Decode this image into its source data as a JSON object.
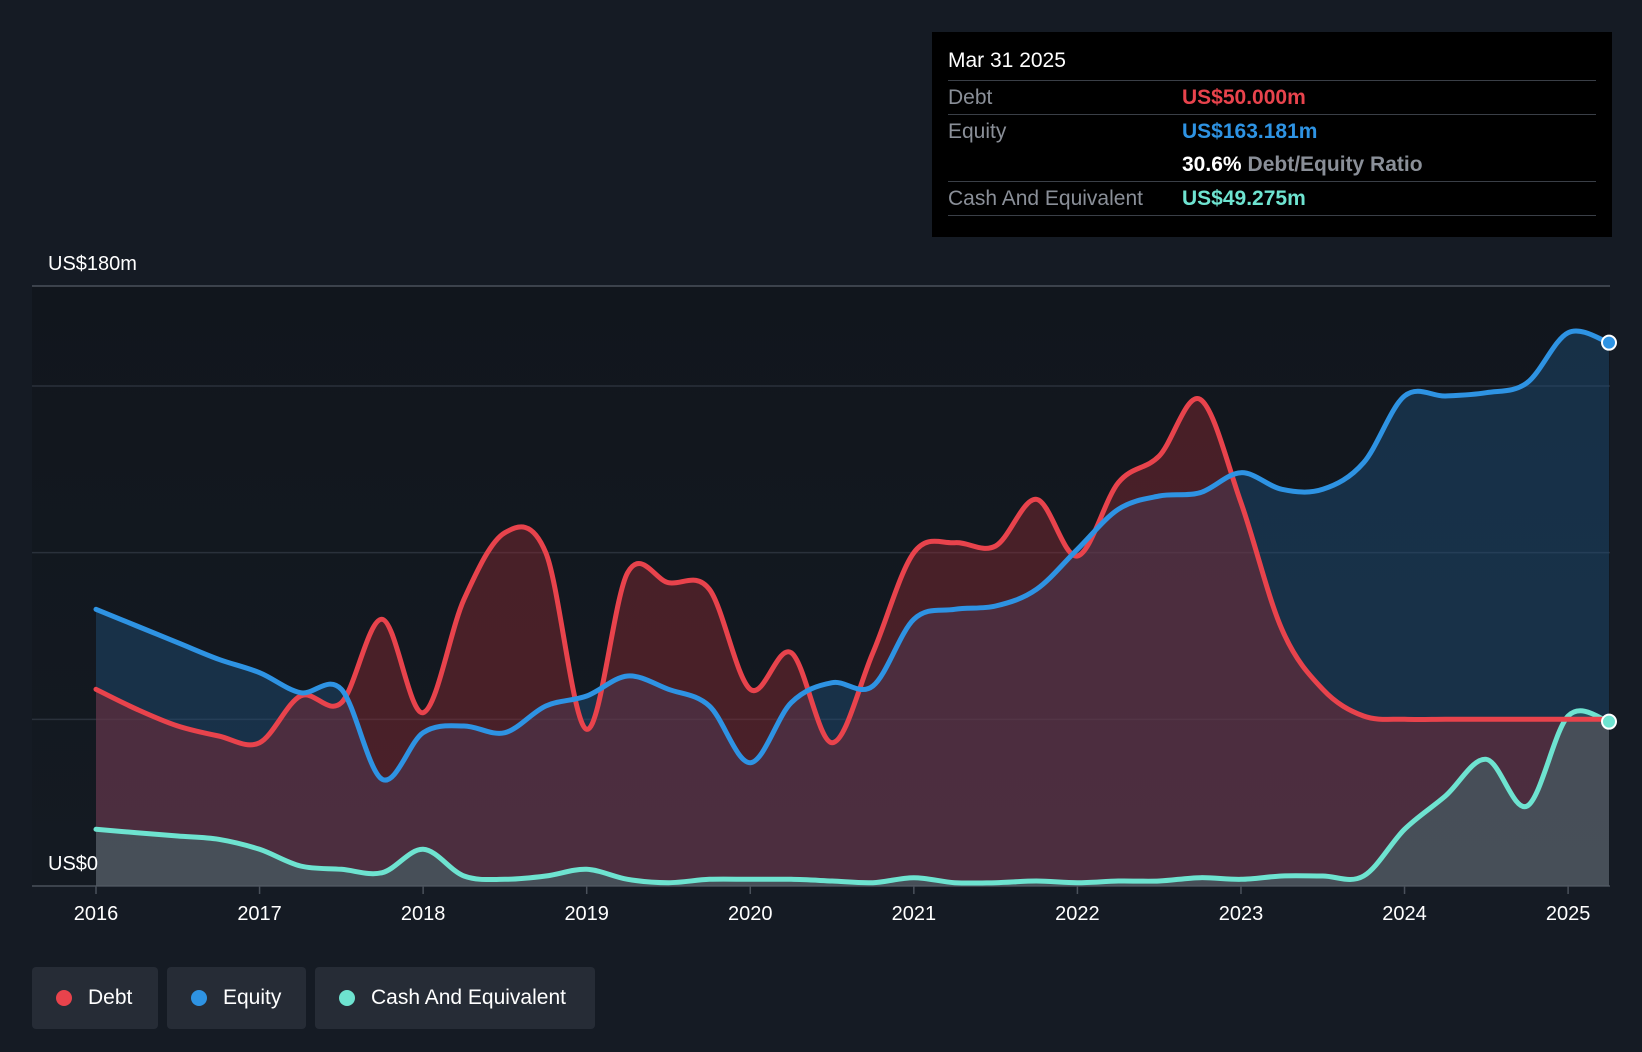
{
  "tooltip": {
    "date": "Mar 31 2025",
    "debt_label": "Debt",
    "debt_value": "US$50.000m",
    "equity_label": "Equity",
    "equity_value": "US$163.181m",
    "ratio_value": "30.6%",
    "ratio_label": "Debt/Equity Ratio",
    "cash_label": "Cash And Equivalent",
    "cash_value": "US$49.275m"
  },
  "legend": {
    "debt": "Debt",
    "equity": "Equity",
    "cash": "Cash And Equivalent"
  },
  "colors": {
    "debt": "#e8434c",
    "equity": "#2e93e3",
    "cash": "#6ee3d0",
    "background": "#151b24"
  },
  "chart_data": {
    "type": "area",
    "title": "",
    "y_top_label": "US$180m",
    "y_bottom_label": "US$0",
    "ylim": [
      0,
      180
    ],
    "xlim": [
      2016,
      2025.25
    ],
    "x_ticks": [
      "2016",
      "2017",
      "2018",
      "2019",
      "2020",
      "2021",
      "2022",
      "2023",
      "2024",
      "2025"
    ],
    "series": [
      {
        "name": "Debt",
        "x": [
          2016,
          2016.25,
          2016.5,
          2016.75,
          2017,
          2017.25,
          2017.5,
          2017.75,
          2018,
          2018.25,
          2018.5,
          2018.75,
          2019,
          2019.25,
          2019.5,
          2019.75,
          2020,
          2020.25,
          2020.5,
          2020.75,
          2021,
          2021.25,
          2021.5,
          2021.75,
          2022,
          2022.25,
          2022.5,
          2022.75,
          2023,
          2023.25,
          2023.5,
          2023.75,
          2024,
          2024.25,
          2024.5,
          2024.75,
          2025,
          2025.25
        ],
        "values": [
          59,
          53,
          48,
          45,
          43,
          57,
          55,
          80,
          52,
          86,
          106,
          100,
          47,
          94,
          91,
          89,
          59,
          70,
          43,
          70,
          100,
          103,
          102,
          116,
          99,
          121,
          129,
          146,
          115,
          77,
          59,
          51,
          50,
          50,
          50,
          50,
          50,
          50
        ]
      },
      {
        "name": "Equity",
        "x": [
          2016,
          2016.25,
          2016.5,
          2016.75,
          2017,
          2017.25,
          2017.5,
          2017.75,
          2018,
          2018.25,
          2018.5,
          2018.75,
          2019,
          2019.25,
          2019.5,
          2019.75,
          2020,
          2020.25,
          2020.5,
          2020.75,
          2021,
          2021.25,
          2021.5,
          2021.75,
          2022,
          2022.25,
          2022.5,
          2022.75,
          2023,
          2023.25,
          2023.5,
          2023.75,
          2024,
          2024.25,
          2024.5,
          2024.75,
          2025,
          2025.25
        ],
        "values": [
          83,
          78,
          73,
          68,
          64,
          58,
          59,
          32,
          46,
          48,
          46,
          54,
          57,
          63,
          59,
          54,
          37,
          55,
          61,
          60,
          80,
          83,
          84,
          89,
          101,
          113,
          117,
          118,
          124,
          119,
          119,
          127,
          147,
          147,
          148,
          151,
          166,
          163
        ]
      },
      {
        "name": "Cash And Equivalent",
        "x": [
          2016,
          2016.25,
          2016.5,
          2016.75,
          2017,
          2017.25,
          2017.5,
          2017.75,
          2018,
          2018.25,
          2018.5,
          2018.75,
          2019,
          2019.25,
          2019.5,
          2019.75,
          2020,
          2020.25,
          2020.5,
          2020.75,
          2021,
          2021.25,
          2021.5,
          2021.75,
          2022,
          2022.25,
          2022.5,
          2022.75,
          2023,
          2023.25,
          2023.5,
          2023.75,
          2024,
          2024.25,
          2024.5,
          2024.75,
          2025,
          2025.25
        ],
        "values": [
          17,
          16,
          15,
          14,
          11,
          6,
          5,
          4,
          11,
          3,
          2,
          3,
          5,
          2,
          1,
          2,
          2,
          2,
          1.5,
          1,
          2.5,
          1,
          1,
          1.5,
          1,
          1.5,
          1.5,
          2.5,
          2,
          3,
          3,
          3,
          17,
          27,
          38,
          24,
          51,
          49.3
        ]
      }
    ]
  }
}
